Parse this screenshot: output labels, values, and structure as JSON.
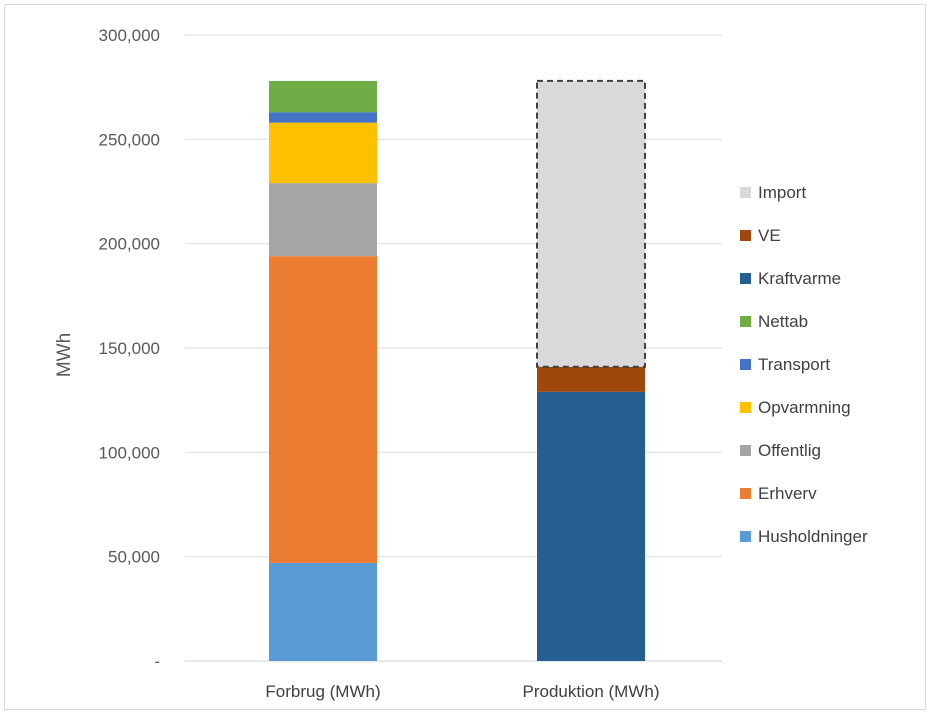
{
  "chart_data": {
    "type": "bar",
    "stacked": true,
    "ylabel": "MWh",
    "ylim": [
      0,
      300000
    ],
    "y_ticks": [
      {
        "value": 0,
        "label": "-"
      },
      {
        "value": 50000,
        "label": "50,000"
      },
      {
        "value": 100000,
        "label": "100,000"
      },
      {
        "value": 150000,
        "label": "150,000"
      },
      {
        "value": 200000,
        "label": "200,000"
      },
      {
        "value": 250000,
        "label": "250,000"
      },
      {
        "value": 300000,
        "label": "300,000"
      }
    ],
    "grid": true,
    "legend_position": "right",
    "categories": [
      "Forbrug (MWh)",
      "Produktion (MWh)"
    ],
    "series": [
      {
        "name": "Husholdninger",
        "color": "#5b9bd5",
        "values": [
          47000,
          0
        ]
      },
      {
        "name": "Erhverv",
        "color": "#ed7d31",
        "values": [
          147000,
          0
        ]
      },
      {
        "name": "Offentlig",
        "color": "#a5a5a5",
        "values": [
          35000,
          0
        ]
      },
      {
        "name": "Opvarmning",
        "color": "#ffc000",
        "values": [
          29000,
          0
        ]
      },
      {
        "name": "Transport",
        "color": "#4472c4",
        "values": [
          5000,
          0
        ]
      },
      {
        "name": "Nettab",
        "color": "#70ad47",
        "values": [
          15000,
          0
        ]
      },
      {
        "name": "Kraftvarme",
        "color": "#255e91",
        "values": [
          0,
          129000
        ]
      },
      {
        "name": "VE",
        "color": "#9e480e",
        "values": [
          0,
          12000
        ]
      },
      {
        "name": "Import",
        "color": "#d9d9d9",
        "values": [
          0,
          137000
        ],
        "dashed_border": true
      }
    ],
    "legend_order": [
      "Import",
      "VE",
      "Kraftvarme",
      "Nettab",
      "Transport",
      "Opvarmning",
      "Offentlig",
      "Erhverv",
      "Husholdninger"
    ]
  }
}
